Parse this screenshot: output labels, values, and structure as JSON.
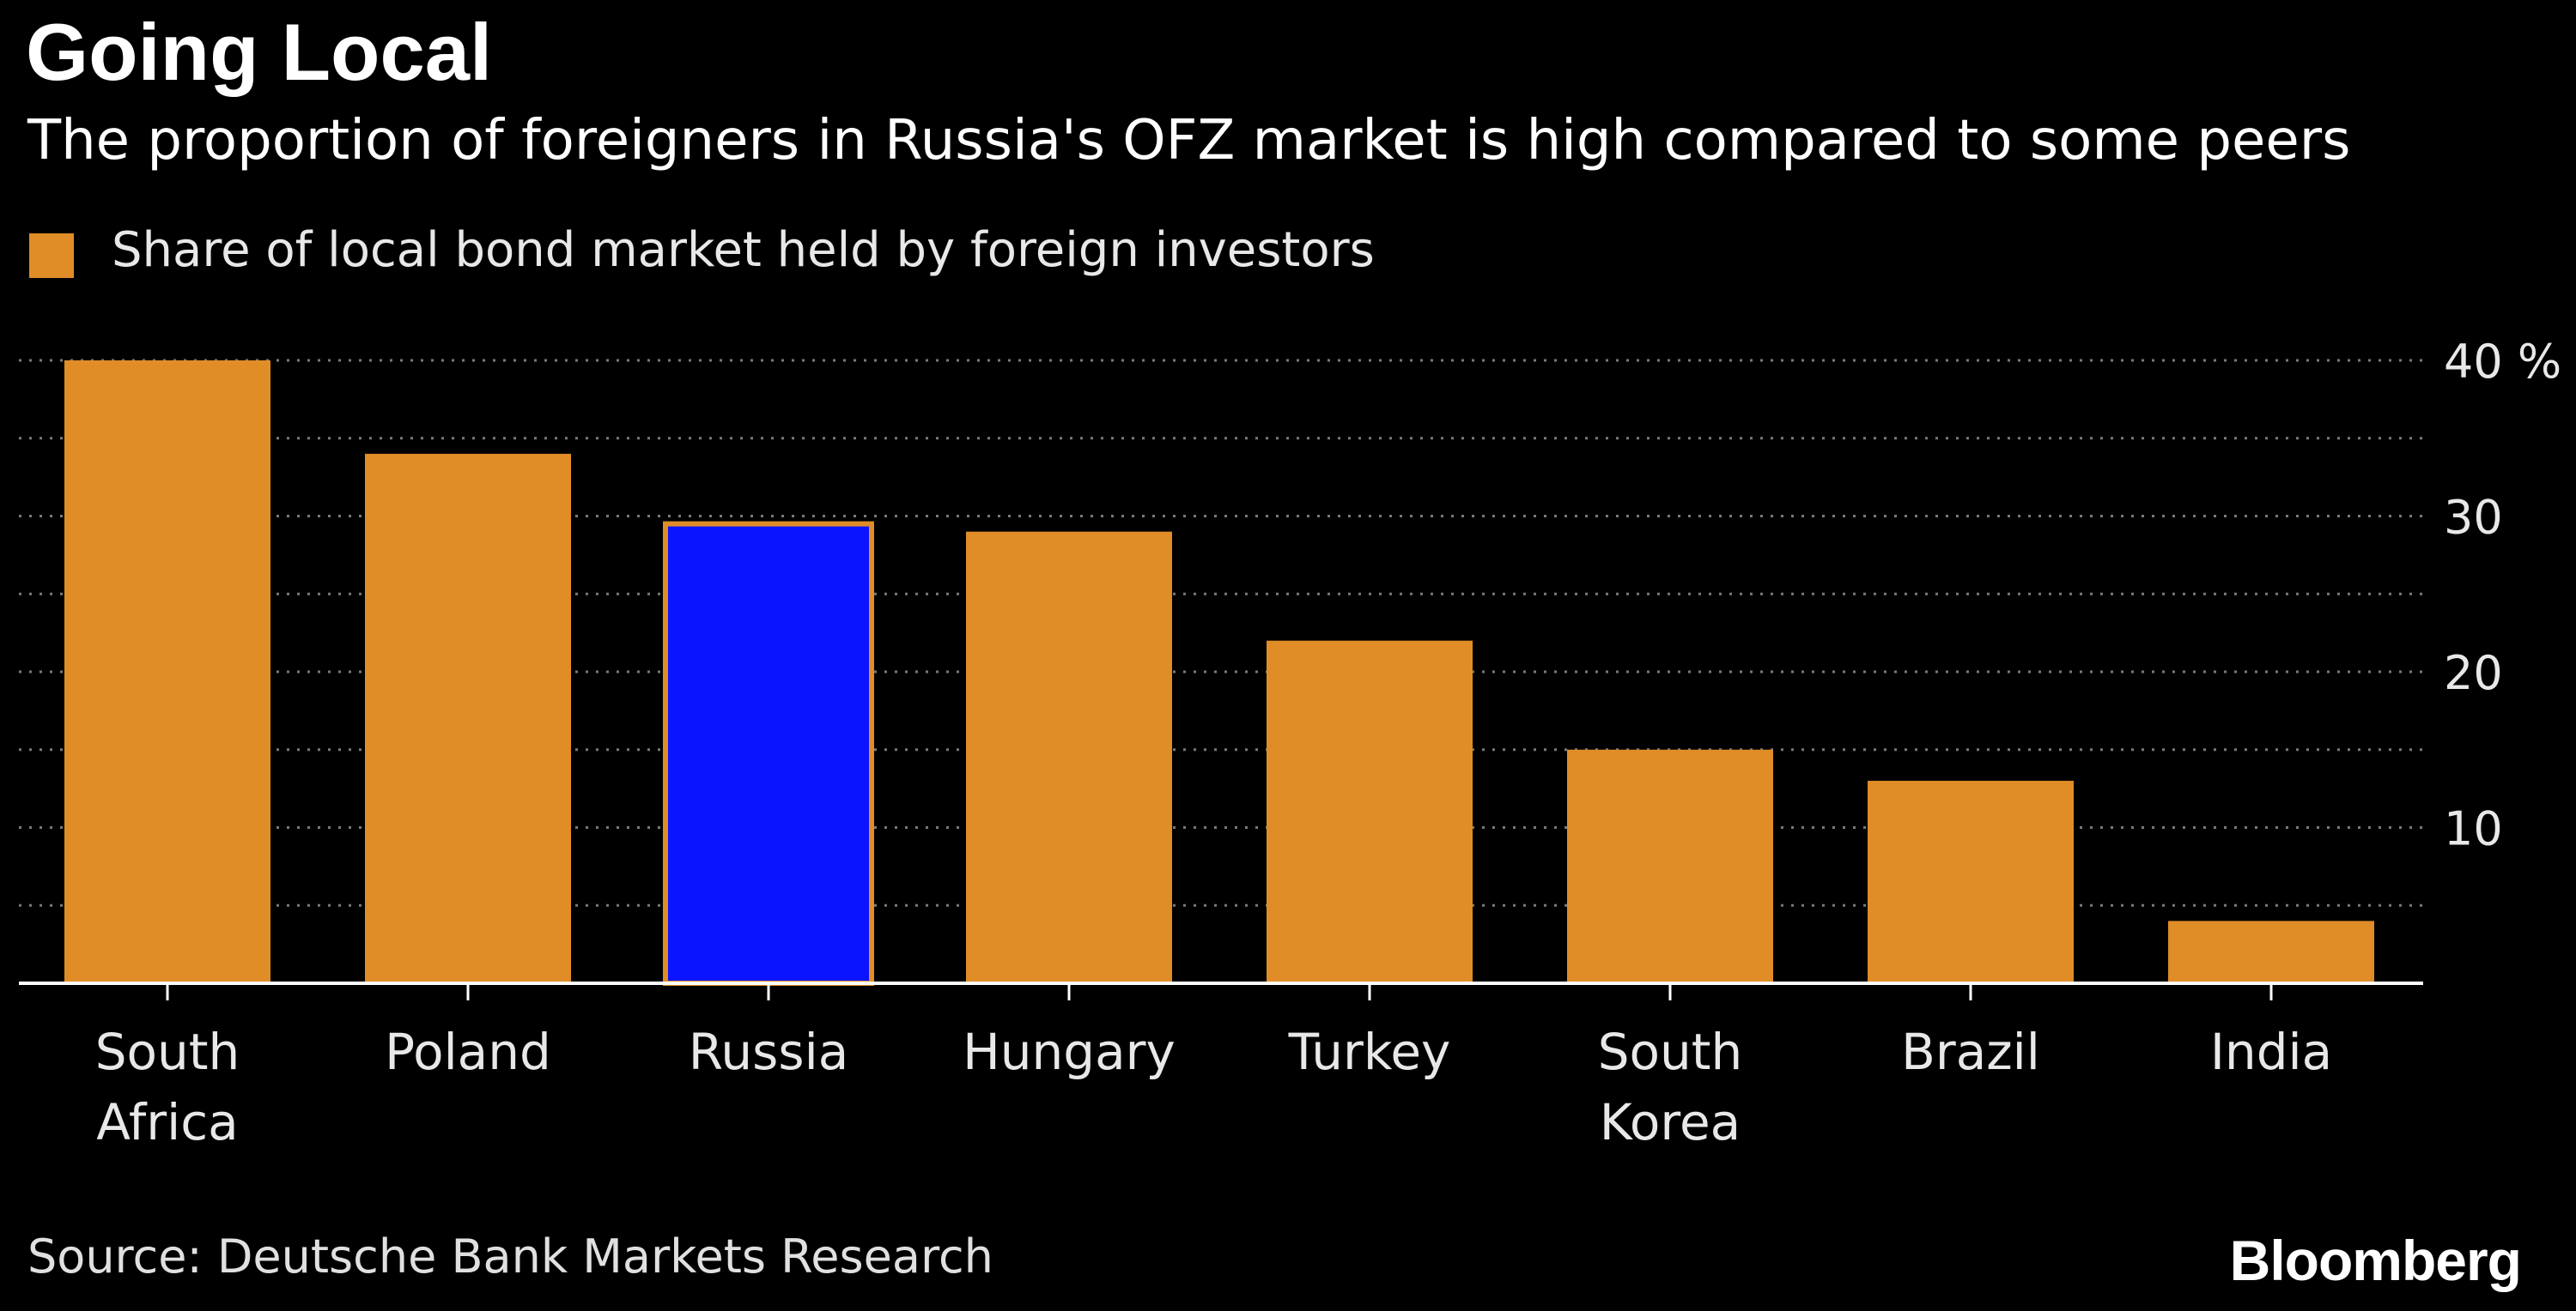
{
  "title": "Going Local",
  "subtitle": "The proportion of foreigners in Russia's OFZ market is high compared to some peers",
  "source": "Source: Deutsche Bank Markets Research",
  "brand": "Bloomberg",
  "colors": {
    "background": "#000000",
    "bar": "#e08d28",
    "highlight": "#0a14ff",
    "grid": "#7a7a7a",
    "axis": "#ffffff",
    "text": "#ffffff"
  },
  "chart_data": {
    "type": "bar",
    "title": "Going Local",
    "subtitle": "The proportion of foreigners in Russia's OFZ market is high compared to some peers",
    "categories": [
      "South Africa",
      "Poland",
      "Russia",
      "Hungary",
      "Turkey",
      "South Korea",
      "Brazil",
      "India"
    ],
    "category_lines": [
      [
        "South",
        "Africa"
      ],
      [
        "Poland"
      ],
      [
        "Russia"
      ],
      [
        "Hungary"
      ],
      [
        "Turkey"
      ],
      [
        "South",
        "Korea"
      ],
      [
        "Brazil"
      ],
      [
        "India"
      ]
    ],
    "series": [
      {
        "name": "Share of local bond market held by foreign investors",
        "values": [
          40,
          34,
          29.5,
          29,
          22,
          15,
          13,
          4
        ]
      }
    ],
    "highlight_category": "Russia",
    "xlabel": "",
    "ylabel": "",
    "unit": "%",
    "ylim": [
      0,
      40
    ],
    "yticks": [
      10,
      20,
      30,
      40
    ],
    "ytick_labels": [
      "10",
      "20",
      "30",
      "40 %"
    ],
    "gridlines": [
      5,
      10,
      15,
      20,
      25,
      30,
      35,
      40
    ],
    "grid": true,
    "y_axis_side": "right",
    "legend_position": "top-left"
  }
}
